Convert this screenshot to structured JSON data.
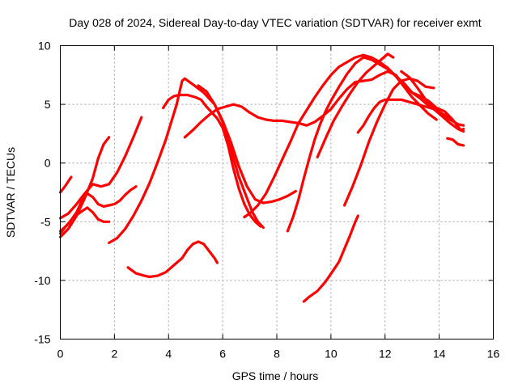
{
  "chart_data": {
    "type": "line",
    "title": "Day 028 of 2024, Sidereal Day-to-day VTEC variation (SDTVAR) for receiver exmt",
    "xlabel": "GPS time / hours",
    "ylabel": "SDTVAR / TECUs",
    "xlim": [
      0,
      16
    ],
    "ylim": [
      -15,
      10
    ],
    "xticks": [
      0,
      2,
      4,
      6,
      8,
      10,
      12,
      14,
      16
    ],
    "yticks": [
      -15,
      -10,
      -5,
      0,
      5,
      10
    ],
    "grid": true,
    "color": "#ff0000",
    "series": [
      {
        "name": "s1",
        "points": [
          [
            0.0,
            -2.5
          ],
          [
            0.2,
            -1.9
          ],
          [
            0.4,
            -1.2
          ]
        ]
      },
      {
        "name": "s2",
        "points": [
          [
            0.0,
            -6.3
          ],
          [
            0.3,
            -5.6
          ],
          [
            0.6,
            -4.5
          ],
          [
            0.9,
            -3.0
          ],
          [
            1.2,
            -1.3
          ],
          [
            1.4,
            0.4
          ],
          [
            1.6,
            1.6
          ],
          [
            1.8,
            2.2
          ]
        ]
      },
      {
        "name": "s3",
        "points": [
          [
            0.0,
            -4.7
          ],
          [
            0.3,
            -4.3
          ],
          [
            0.6,
            -3.5
          ],
          [
            0.9,
            -2.6
          ],
          [
            1.2,
            -1.8
          ],
          [
            1.5,
            -2.0
          ],
          [
            1.8,
            -1.8
          ],
          [
            2.1,
            -0.8
          ],
          [
            2.4,
            0.6
          ],
          [
            2.7,
            2.2
          ],
          [
            3.0,
            3.9
          ]
        ]
      },
      {
        "name": "s4",
        "points": [
          [
            0.0,
            -5.8
          ],
          [
            0.3,
            -5.2
          ],
          [
            0.6,
            -4.2
          ],
          [
            0.8,
            -3.2
          ],
          [
            1.0,
            -2.6
          ],
          [
            1.2,
            -2.9
          ],
          [
            1.4,
            -3.5
          ],
          [
            1.6,
            -3.7
          ],
          [
            1.8,
            -3.6
          ],
          [
            2.0,
            -3.5
          ],
          [
            2.2,
            -3.2
          ],
          [
            2.4,
            -2.7
          ],
          [
            2.6,
            -2.3
          ],
          [
            2.8,
            -2.0
          ]
        ]
      },
      {
        "name": "s5",
        "points": [
          [
            0.0,
            -6.0
          ],
          [
            0.2,
            -5.4
          ],
          [
            0.5,
            -4.6
          ],
          [
            0.8,
            -4.1
          ],
          [
            1.0,
            -3.8
          ],
          [
            1.2,
            -4.2
          ],
          [
            1.4,
            -4.8
          ],
          [
            1.6,
            -5.0
          ],
          [
            1.8,
            -5.0
          ]
        ]
      },
      {
        "name": "s6",
        "points": [
          [
            1.8,
            -6.8
          ],
          [
            2.1,
            -6.4
          ],
          [
            2.4,
            -5.6
          ],
          [
            2.7,
            -4.5
          ],
          [
            3.0,
            -3.2
          ],
          [
            3.3,
            -1.7
          ],
          [
            3.6,
            0.1
          ],
          [
            3.9,
            2.0
          ],
          [
            4.1,
            3.5
          ],
          [
            4.3,
            5.0
          ],
          [
            4.4,
            6.0
          ],
          [
            4.5,
            7.0
          ],
          [
            4.6,
            7.2
          ],
          [
            4.9,
            6.7
          ],
          [
            5.3,
            6.0
          ],
          [
            5.7,
            5.0
          ],
          [
            6.0,
            3.5
          ],
          [
            6.3,
            1.2
          ],
          [
            6.6,
            -1.2
          ],
          [
            6.9,
            -3.0
          ],
          [
            7.1,
            -4.2
          ],
          [
            7.3,
            -5.0
          ],
          [
            7.5,
            -5.5
          ]
        ]
      },
      {
        "name": "s7",
        "points": [
          [
            2.5,
            -8.9
          ],
          [
            2.8,
            -9.4
          ],
          [
            3.1,
            -9.6
          ],
          [
            3.3,
            -9.7
          ],
          [
            3.6,
            -9.6
          ],
          [
            3.9,
            -9.3
          ],
          [
            4.2,
            -8.7
          ],
          [
            4.5,
            -8.1
          ],
          [
            4.7,
            -7.4
          ],
          [
            4.9,
            -6.9
          ],
          [
            5.1,
            -6.7
          ],
          [
            5.3,
            -6.9
          ],
          [
            5.5,
            -7.5
          ],
          [
            5.7,
            -8.1
          ],
          [
            5.8,
            -8.5
          ]
        ]
      },
      {
        "name": "s8",
        "points": [
          [
            3.8,
            4.7
          ],
          [
            4.0,
            5.4
          ],
          [
            4.2,
            5.7
          ],
          [
            4.4,
            5.8
          ],
          [
            4.7,
            5.8
          ],
          [
            5.0,
            5.6
          ],
          [
            5.2,
            5.4
          ],
          [
            5.4,
            4.8
          ],
          [
            5.6,
            4.3
          ],
          [
            5.8,
            3.8
          ],
          [
            6.0,
            3.0
          ],
          [
            6.2,
            1.5
          ],
          [
            6.4,
            -0.5
          ],
          [
            6.6,
            -2.2
          ],
          [
            6.8,
            -3.5
          ],
          [
            7.0,
            -4.4
          ],
          [
            7.2,
            -5.0
          ],
          [
            7.4,
            -5.4
          ]
        ]
      },
      {
        "name": "s9",
        "points": [
          [
            5.1,
            6.6
          ],
          [
            5.4,
            6.1
          ],
          [
            5.7,
            5.0
          ],
          [
            6.0,
            3.6
          ],
          [
            6.3,
            1.8
          ],
          [
            6.6,
            -0.3
          ],
          [
            6.9,
            -2.0
          ],
          [
            7.2,
            -3.1
          ],
          [
            7.5,
            -3.4
          ],
          [
            7.8,
            -3.3
          ],
          [
            8.1,
            -3.1
          ],
          [
            8.4,
            -2.8
          ],
          [
            8.7,
            -2.4
          ]
        ]
      },
      {
        "name": "s10",
        "points": [
          [
            4.6,
            2.2
          ],
          [
            4.9,
            2.8
          ],
          [
            5.2,
            3.5
          ],
          [
            5.5,
            4.1
          ],
          [
            5.8,
            4.6
          ],
          [
            6.1,
            4.8
          ],
          [
            6.4,
            5.0
          ],
          [
            6.7,
            4.8
          ],
          [
            7.0,
            4.3
          ],
          [
            7.3,
            3.9
          ],
          [
            7.6,
            3.7
          ],
          [
            7.9,
            3.6
          ],
          [
            8.2,
            3.6
          ],
          [
            8.5,
            3.5
          ],
          [
            8.8,
            3.4
          ],
          [
            9.1,
            3.2
          ],
          [
            9.4,
            3.5
          ],
          [
            9.7,
            4.0
          ],
          [
            10.0,
            4.6
          ],
          [
            10.3,
            5.5
          ],
          [
            10.6,
            6.3
          ],
          [
            10.9,
            6.9
          ],
          [
            11.2,
            7.0
          ],
          [
            11.5,
            7.1
          ],
          [
            11.8,
            7.5
          ],
          [
            12.1,
            7.8
          ],
          [
            12.4,
            7.5
          ],
          [
            12.7,
            6.6
          ],
          [
            13.0,
            6.0
          ],
          [
            13.3,
            5.7
          ],
          [
            13.6,
            5.3
          ],
          [
            13.9,
            4.7
          ],
          [
            14.2,
            4.4
          ],
          [
            14.5,
            3.7
          ],
          [
            14.8,
            2.8
          ],
          [
            14.9,
            2.9
          ]
        ]
      },
      {
        "name": "s11",
        "points": [
          [
            6.8,
            -4.6
          ],
          [
            7.0,
            -4.3
          ],
          [
            7.3,
            -3.6
          ],
          [
            7.6,
            -2.6
          ],
          [
            7.9,
            -1.2
          ],
          [
            8.2,
            0.3
          ],
          [
            8.5,
            1.8
          ],
          [
            8.8,
            3.4
          ],
          [
            9.1,
            4.5
          ],
          [
            9.4,
            5.6
          ],
          [
            9.7,
            6.6
          ],
          [
            10.0,
            7.5
          ],
          [
            10.3,
            8.2
          ],
          [
            10.6,
            8.6
          ],
          [
            10.9,
            9.0
          ],
          [
            11.2,
            9.2
          ],
          [
            11.5,
            9.0
          ],
          [
            11.8,
            8.6
          ],
          [
            12.1,
            8.1
          ],
          [
            12.4,
            7.4
          ],
          [
            12.7,
            6.5
          ],
          [
            13.0,
            5.6
          ],
          [
            13.3,
            4.9
          ],
          [
            13.6,
            4.2
          ],
          [
            13.9,
            3.7
          ]
        ]
      },
      {
        "name": "s12",
        "points": [
          [
            8.4,
            -5.8
          ],
          [
            8.6,
            -4.6
          ],
          [
            8.8,
            -3.1
          ],
          [
            9.0,
            -1.3
          ],
          [
            9.2,
            0.4
          ],
          [
            9.4,
            2.0
          ],
          [
            9.6,
            3.3
          ],
          [
            9.8,
            4.4
          ],
          [
            10.0,
            5.3
          ],
          [
            10.3,
            6.5
          ],
          [
            10.6,
            7.6
          ],
          [
            10.9,
            8.5
          ],
          [
            11.2,
            9.0
          ],
          [
            11.5,
            8.8
          ],
          [
            11.8,
            8.4
          ],
          [
            12.1,
            8.0
          ],
          [
            12.4,
            7.4
          ],
          [
            12.7,
            6.8
          ],
          [
            13.0,
            6.0
          ],
          [
            13.3,
            5.5
          ],
          [
            13.6,
            4.9
          ],
          [
            13.9,
            4.5
          ],
          [
            14.2,
            4.1
          ],
          [
            14.4,
            3.8
          ]
        ]
      },
      {
        "name": "s13",
        "points": [
          [
            9.5,
            0.5
          ],
          [
            9.8,
            2.1
          ],
          [
            10.1,
            3.6
          ],
          [
            10.4,
            4.8
          ],
          [
            10.7,
            5.9
          ],
          [
            11.0,
            6.9
          ],
          [
            11.3,
            7.7
          ],
          [
            11.6,
            8.3
          ],
          [
            11.9,
            8.9
          ],
          [
            12.1,
            9.3
          ],
          [
            12.3,
            9.0
          ]
        ]
      },
      {
        "name": "s14",
        "points": [
          [
            10.5,
            -3.6
          ],
          [
            10.8,
            -2.0
          ],
          [
            11.1,
            -0.2
          ],
          [
            11.4,
            1.8
          ],
          [
            11.7,
            3.5
          ],
          [
            12.0,
            5.0
          ],
          [
            12.3,
            6.3
          ],
          [
            12.6,
            7.0
          ],
          [
            12.9,
            7.2
          ],
          [
            13.2,
            7.0
          ],
          [
            13.5,
            6.5
          ],
          [
            13.8,
            6.4
          ]
        ]
      },
      {
        "name": "s15",
        "points": [
          [
            11.0,
            2.6
          ],
          [
            11.2,
            3.2
          ],
          [
            11.4,
            4.0
          ],
          [
            11.6,
            4.7
          ],
          [
            11.8,
            5.2
          ],
          [
            12.0,
            5.4
          ],
          [
            12.3,
            5.4
          ],
          [
            12.6,
            5.4
          ],
          [
            12.9,
            5.2
          ],
          [
            13.2,
            5.0
          ],
          [
            13.5,
            4.8
          ],
          [
            13.8,
            4.6
          ],
          [
            14.1,
            4.2
          ],
          [
            14.4,
            3.7
          ],
          [
            14.7,
            3.3
          ],
          [
            14.9,
            3.2
          ]
        ]
      },
      {
        "name": "s16",
        "points": [
          [
            12.6,
            7.8
          ],
          [
            12.9,
            7.3
          ],
          [
            13.2,
            6.4
          ],
          [
            13.5,
            5.4
          ],
          [
            13.8,
            4.6
          ],
          [
            14.1,
            4.0
          ],
          [
            14.4,
            3.4
          ],
          [
            14.7,
            2.9
          ],
          [
            14.9,
            2.7
          ]
        ]
      },
      {
        "name": "s17",
        "points": [
          [
            9.0,
            -11.8
          ],
          [
            9.2,
            -11.4
          ],
          [
            9.5,
            -10.9
          ],
          [
            9.8,
            -10.1
          ],
          [
            10.1,
            -9.1
          ],
          [
            10.3,
            -8.4
          ],
          [
            10.5,
            -7.3
          ],
          [
            10.7,
            -6.2
          ],
          [
            10.9,
            -5.0
          ],
          [
            11.0,
            -4.5
          ]
        ]
      },
      {
        "name": "s18",
        "points": [
          [
            14.3,
            2.1
          ],
          [
            14.5,
            2.0
          ],
          [
            14.7,
            1.6
          ],
          [
            14.9,
            1.5
          ]
        ]
      }
    ]
  }
}
